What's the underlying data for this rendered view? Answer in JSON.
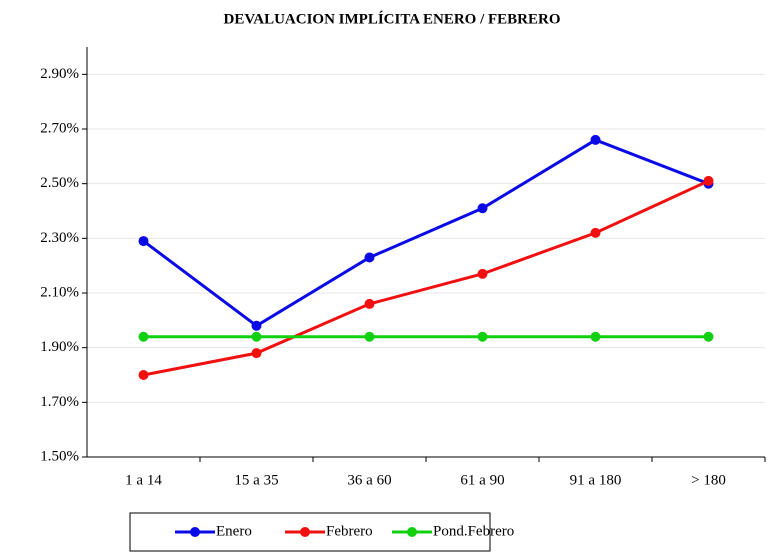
{
  "chart_data": {
    "type": "line",
    "title": "DEVALUACION  IMPLÍCITA ENERO / FEBRERO",
    "categories": [
      "1 a 14",
      "15 a 35",
      "36 a 60",
      "61 a 90",
      "91 a 180",
      "> 180"
    ],
    "series": [
      {
        "name": "Enero",
        "color": "#0a0ae6",
        "values": [
          2.29,
          1.98,
          2.23,
          2.41,
          2.66,
          2.5
        ]
      },
      {
        "name": "Febrero",
        "color": "#f01010",
        "values": [
          1.8,
          1.88,
          2.06,
          2.17,
          2.32,
          2.51
        ]
      },
      {
        "name": "Pond.Febrero",
        "color": "#10d010",
        "values": [
          1.94,
          1.94,
          1.94,
          1.94,
          1.94,
          1.94
        ]
      }
    ],
    "ylim": [
      1.5,
      3.0
    ],
    "yticks": [
      {
        "value": 1.5,
        "label": "1.50%"
      },
      {
        "value": 1.7,
        "label": "1.70%"
      },
      {
        "value": 1.9,
        "label": "1.90%"
      },
      {
        "value": 2.1,
        "label": "2.10%"
      },
      {
        "value": 2.3,
        "label": "2.30%"
      },
      {
        "value": 2.5,
        "label": "2.50%"
      },
      {
        "value": 2.7,
        "label": "2.70%"
      },
      {
        "value": 2.9,
        "label": "2.90%"
      }
    ],
    "grid": true,
    "legend": "bottom"
  }
}
